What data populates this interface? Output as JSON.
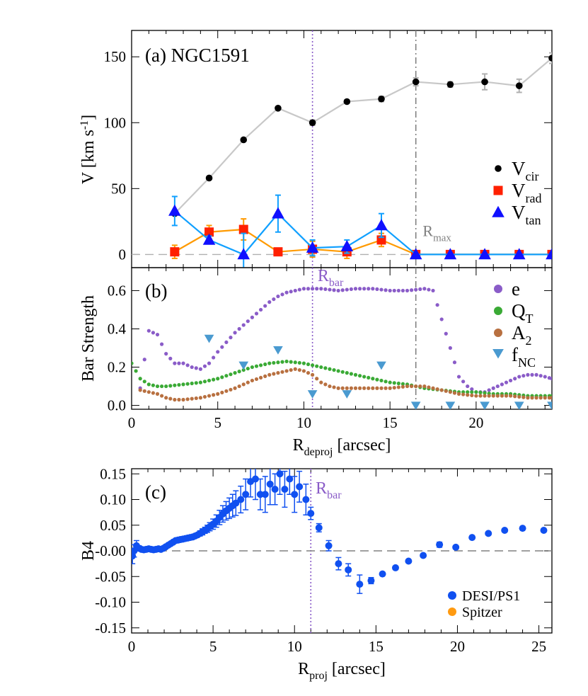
{
  "chart_data": [
    {
      "type": "line",
      "panel_label": "(a) NGC1591",
      "ylabel": {
        "main": "V [km s",
        "sup": "-1",
        "tail": "]"
      },
      "xlim": [
        0,
        24.4
      ],
      "ylim": [
        -10,
        170
      ],
      "x_ticks": [
        0,
        5,
        10,
        15,
        20
      ],
      "y_ticks": [
        0,
        50,
        100,
        150
      ],
      "colors": {
        "vcir": "#000000",
        "vcir_line": "#c8c8c8",
        "vrad": "#ff2000",
        "vrad_line": "#ff9a00",
        "vtan": "#1010ff",
        "vtan_line": "#10a0ff"
      },
      "legend": [
        {
          "key": "vcir",
          "marker": "circle",
          "base": "V",
          "sub": "cir"
        },
        {
          "key": "vrad",
          "marker": "square",
          "base": "V",
          "sub": "rad"
        },
        {
          "key": "vtan",
          "marker": "triangle",
          "base": "V",
          "sub": "tan"
        }
      ],
      "series": [
        {
          "key": "vcir",
          "x": [
            2.5,
            4.5,
            6.5,
            8.5,
            10.5,
            12.5,
            14.5,
            16.5,
            18.5,
            20.5,
            22.5,
            24.4
          ],
          "y": [
            31,
            58,
            87,
            111,
            100,
            116,
            118,
            131,
            129,
            131,
            128,
            149
          ],
          "err": [
            0,
            1,
            1,
            1,
            2,
            1,
            2,
            3,
            2,
            6,
            5,
            4
          ]
        },
        {
          "key": "vrad",
          "x": [
            2.5,
            4.5,
            6.5,
            8.5,
            10.5,
            12.5,
            14.5,
            16.5,
            18.5,
            20.5,
            22.5,
            24.4
          ],
          "y": [
            2,
            17,
            19,
            2,
            4,
            2,
            11,
            0,
            0,
            0,
            0,
            0
          ],
          "err": [
            5,
            5,
            8,
            1,
            6,
            5,
            5,
            0,
            0,
            0,
            0,
            0
          ]
        },
        {
          "key": "vtan",
          "x": [
            2.5,
            4.5,
            6.5,
            8.5,
            10.5,
            12.5,
            14.5,
            16.5,
            18.5,
            20.5,
            22.5,
            24.4
          ],
          "y": [
            33,
            11,
            0,
            31,
            5,
            6,
            22,
            0,
            0,
            0,
            0,
            0
          ],
          "err": [
            11,
            3,
            16,
            14,
            6,
            5,
            9,
            0,
            0,
            0,
            0,
            0
          ]
        }
      ],
      "annotations": [
        {
          "type": "vline",
          "x": 10.5,
          "style": "dotted",
          "color": "#8a5cc8"
        },
        {
          "type": "vline",
          "x": 16.5,
          "style": "dashdot",
          "color": "#808080"
        },
        {
          "type": "hline",
          "y": 0,
          "style": "dashed",
          "color": "#b0b0b0"
        },
        {
          "type": "text",
          "base": "R",
          "sub": "max",
          "x": 16.9,
          "y": 14,
          "color": "#808080"
        }
      ]
    },
    {
      "type": "scatter",
      "panel_label": "(b)",
      "ylabel": "Bar Strength",
      "xlabel": {
        "base": "R",
        "sub": "deproj",
        "tail": " [arcsec]"
      },
      "xlim": [
        0,
        24.4
      ],
      "ylim": [
        -0.02,
        0.72
      ],
      "x_ticks": [
        0,
        5,
        10,
        15,
        20
      ],
      "y_ticks": [
        0.0,
        0.2,
        0.4,
        0.6
      ],
      "y_tick_labels": [
        "0.0",
        "0.2",
        "0.4",
        "0.6"
      ],
      "colors": {
        "e": "#8a5cc8",
        "qt": "#3aaa35",
        "a2": "#b87040",
        "fnc": "#4a9ad0"
      },
      "legend": [
        {
          "key": "e",
          "marker": "circle",
          "base": "e",
          "sub": ""
        },
        {
          "key": "qt",
          "marker": "circle",
          "base": "Q",
          "sub": "T"
        },
        {
          "key": "a2",
          "marker": "circle",
          "base": "A",
          "sub": "2"
        },
        {
          "key": "fnc",
          "marker": "triangle-down",
          "base": "f",
          "sub": "NC"
        }
      ],
      "series": [
        {
          "key": "e",
          "x": [
            0.5,
            1.0,
            1.5,
            2.0,
            2.5,
            3.0,
            3.5,
            4.0,
            4.5,
            5.0,
            5.5,
            6.0,
            6.5,
            7.0,
            7.5,
            8.0,
            8.5,
            9.0,
            9.5,
            10.0,
            10.5,
            11.0,
            12.0,
            13.0,
            14.0,
            15.0,
            16.0,
            17.0,
            17.5,
            18.0,
            18.5,
            19.0,
            19.5,
            20.0,
            20.5,
            21.0,
            21.5,
            22.0,
            22.5,
            23.0,
            23.5,
            24.0,
            24.4
          ],
          "y": [
            0.09,
            0.39,
            0.37,
            0.27,
            0.22,
            0.22,
            0.2,
            0.19,
            0.22,
            0.28,
            0.33,
            0.38,
            0.42,
            0.46,
            0.5,
            0.54,
            0.57,
            0.59,
            0.6,
            0.61,
            0.61,
            0.61,
            0.6,
            0.61,
            0.61,
            0.6,
            0.6,
            0.61,
            0.6,
            0.45,
            0.3,
            0.15,
            0.1,
            0.07,
            0.07,
            0.09,
            0.11,
            0.13,
            0.15,
            0.16,
            0.16,
            0.15,
            0.14
          ]
        },
        {
          "key": "qt",
          "x": [
            0.0,
            0.5,
            1.0,
            1.5,
            2.0,
            3.0,
            4.0,
            5.0,
            6.0,
            7.0,
            8.0,
            9.0,
            10.0,
            11.0,
            12.0,
            13.0,
            14.0,
            15.0,
            16.0,
            17.0,
            18.0,
            19.0,
            20.0,
            21.0,
            22.0,
            23.0,
            24.0,
            24.4
          ],
          "y": [
            0.22,
            0.14,
            0.11,
            0.1,
            0.1,
            0.11,
            0.12,
            0.14,
            0.17,
            0.2,
            0.22,
            0.23,
            0.22,
            0.2,
            0.18,
            0.16,
            0.14,
            0.12,
            0.11,
            0.09,
            0.08,
            0.07,
            0.07,
            0.06,
            0.06,
            0.05,
            0.05,
            0.05
          ]
        },
        {
          "key": "a2",
          "x": [
            0.5,
            1.0,
            1.5,
            2.0,
            2.5,
            3.0,
            4.0,
            5.0,
            6.0,
            7.0,
            8.0,
            9.0,
            9.5,
            10.0,
            10.5,
            11.0,
            11.5,
            12.0,
            13.0,
            14.0,
            15.0,
            16.0,
            17.0,
            18.0,
            19.0,
            20.0,
            21.0,
            22.0,
            23.0,
            24.0,
            24.4
          ],
          "y": [
            0.08,
            0.07,
            0.06,
            0.04,
            0.03,
            0.03,
            0.04,
            0.06,
            0.09,
            0.13,
            0.16,
            0.18,
            0.19,
            0.18,
            0.16,
            0.12,
            0.1,
            0.09,
            0.09,
            0.09,
            0.09,
            0.1,
            0.1,
            0.08,
            0.06,
            0.05,
            0.05,
            0.05,
            0.04,
            0.04,
            0.04
          ]
        },
        {
          "key": "fnc",
          "x": [
            4.5,
            6.5,
            8.5,
            10.5,
            12.5,
            14.5,
            16.5,
            18.5,
            20.5,
            22.5,
            24.4
          ],
          "y": [
            0.35,
            0.21,
            0.29,
            0.06,
            0.06,
            0.21,
            0.0,
            0.0,
            0.0,
            0.0,
            0.0
          ]
        }
      ],
      "annotations": [
        {
          "type": "vline",
          "x": 10.5,
          "style": "dotted",
          "color": "#8a5cc8"
        },
        {
          "type": "vline",
          "x": 16.5,
          "style": "dashdot",
          "color": "#808080"
        },
        {
          "type": "text",
          "base": "R",
          "sub": "bar",
          "x": 10.8,
          "y": 0.65,
          "color": "#8a5cc8"
        }
      ]
    },
    {
      "type": "scatter",
      "panel_label": "(c)",
      "ylabel": "B4",
      "xlabel": {
        "base": "R",
        "sub": "proj",
        "tail": " [arcsec]"
      },
      "xlim": [
        0,
        25.8
      ],
      "ylim": [
        -0.16,
        0.16
      ],
      "x_ticks": [
        0,
        5,
        10,
        15,
        20,
        25
      ],
      "y_ticks": [
        -0.15,
        -0.1,
        -0.05,
        0.0,
        0.05,
        0.1,
        0.15
      ],
      "y_tick_labels": [
        "-0.15",
        "-0.10",
        "-0.05",
        "-0.00",
        "0.05",
        "0.10",
        "0.15"
      ],
      "colors": {
        "desi": "#1050f0",
        "spitzer": "#ff9a10"
      },
      "legend": [
        {
          "key": "desi",
          "label": "DESI/PS1"
        },
        {
          "key": "spitzer",
          "label": "Spitzer"
        }
      ],
      "series": [
        {
          "key": "desi",
          "x": [
            0.05,
            0.15,
            0.3,
            0.45,
            0.6,
            0.75,
            0.9,
            1.05,
            1.2,
            1.35,
            1.5,
            1.65,
            1.8,
            1.95,
            2.1,
            2.25,
            2.4,
            2.55,
            2.7,
            2.85,
            3.0,
            3.15,
            3.3,
            3.45,
            3.6,
            3.75,
            3.9,
            4.05,
            4.2,
            4.35,
            4.5,
            4.65,
            4.8,
            5.0,
            5.2,
            5.4,
            5.6,
            5.8,
            6.0,
            6.2,
            6.4,
            6.7,
            7.0,
            7.3,
            7.6,
            7.9,
            8.2,
            8.5,
            8.8,
            9.1,
            9.4,
            9.7,
            10.0,
            10.3,
            10.7,
            11.0,
            11.5,
            12.1,
            12.7,
            13.3,
            14.0,
            14.7,
            15.4,
            16.2,
            17.0,
            17.9,
            18.9,
            19.9,
            20.9,
            21.9,
            22.9,
            24.0,
            25.3
          ],
          "y": [
            -0.01,
            0.0,
            0.01,
            0.005,
            0.003,
            0.002,
            0.003,
            0.004,
            0.003,
            0.002,
            0.003,
            0.004,
            0.003,
            0.005,
            0.008,
            0.011,
            0.014,
            0.017,
            0.02,
            0.021,
            0.022,
            0.023,
            0.024,
            0.025,
            0.026,
            0.027,
            0.029,
            0.031,
            0.034,
            0.037,
            0.04,
            0.043,
            0.047,
            0.052,
            0.058,
            0.065,
            0.072,
            0.078,
            0.083,
            0.088,
            0.093,
            0.1,
            0.11,
            0.135,
            0.14,
            0.11,
            0.11,
            0.13,
            0.12,
            0.15,
            0.12,
            0.14,
            0.11,
            0.125,
            0.1,
            0.073,
            0.045,
            0.01,
            -0.025,
            -0.037,
            -0.065,
            -0.058,
            -0.045,
            -0.033,
            -0.02,
            -0.009,
            0.012,
            0.007,
            0.026,
            0.034,
            0.04,
            0.044,
            0.04
          ],
          "err": [
            0.015,
            0.012,
            0.01,
            0.005,
            0.004,
            0.003,
            0.003,
            0.003,
            0.003,
            0.003,
            0.003,
            0.003,
            0.003,
            0.003,
            0.003,
            0.003,
            0.003,
            0.003,
            0.003,
            0.003,
            0.003,
            0.003,
            0.003,
            0.003,
            0.003,
            0.003,
            0.004,
            0.004,
            0.005,
            0.006,
            0.006,
            0.007,
            0.008,
            0.01,
            0.012,
            0.014,
            0.016,
            0.018,
            0.02,
            0.022,
            0.024,
            0.026,
            0.03,
            0.03,
            0.04,
            0.03,
            0.035,
            0.04,
            0.03,
            0.04,
            0.035,
            0.03,
            0.035,
            0.03,
            0.03,
            0.012,
            0.008,
            0.01,
            0.012,
            0.012,
            0.018,
            0.006,
            0.004,
            0.004,
            0.004,
            0.004,
            0.005,
            0.004,
            0.004,
            0.004,
            0.004,
            0.004,
            0.004
          ]
        }
      ],
      "annotations": [
        {
          "type": "vline",
          "x": 11.0,
          "style": "dotted",
          "color": "#8a5cc8"
        },
        {
          "type": "hline",
          "y": 0,
          "style": "dashed",
          "color": "#808080"
        },
        {
          "type": "text",
          "base": "R",
          "sub": "bar",
          "x": 11.3,
          "y": 0.112,
          "color": "#8a5cc8"
        }
      ]
    }
  ]
}
